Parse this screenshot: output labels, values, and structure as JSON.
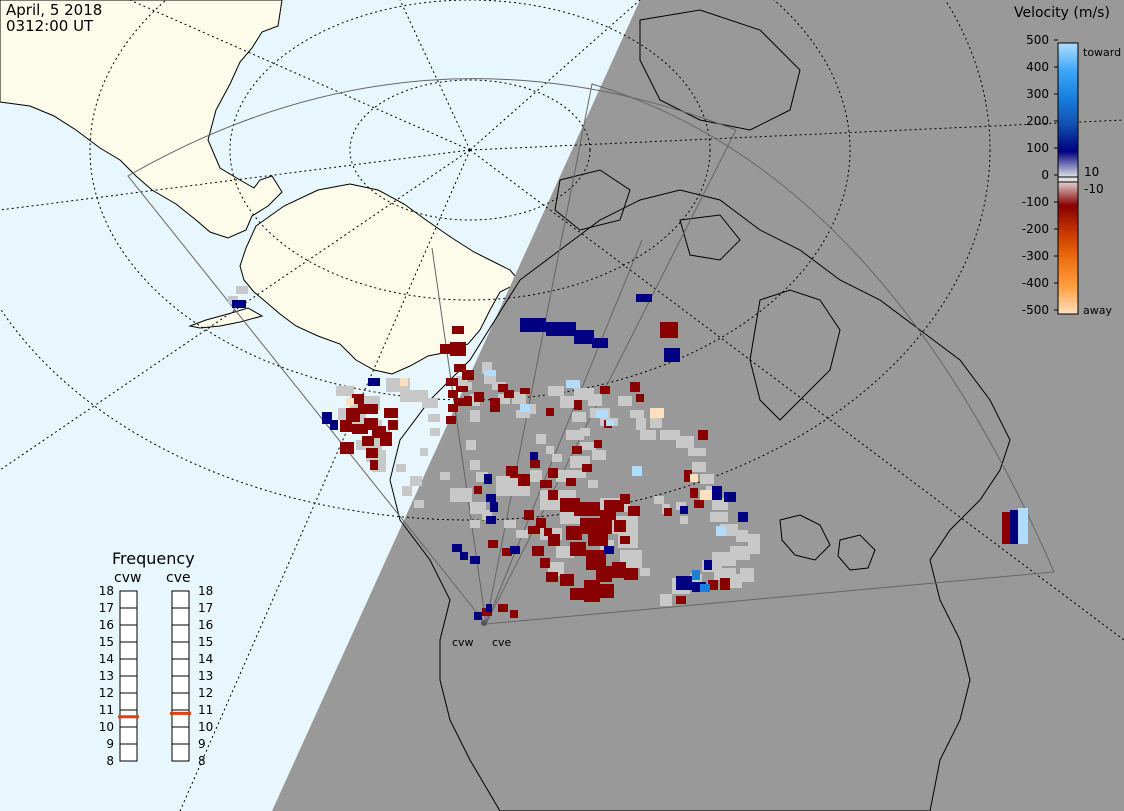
{
  "title": {
    "date": "April, 5 2018",
    "time": "0312:00 UT"
  },
  "colors": {
    "ocean": "#e8f6fe",
    "land": "#fdfcea",
    "night": "#999999",
    "ground_scatter": "#c8c8c8",
    "fov_outline": "#666666",
    "coast": "#000000"
  },
  "radars": [
    {
      "name": "cvw",
      "frequency_mhz": 10.6
    },
    {
      "name": "cve",
      "frequency_mhz": 10.8
    }
  ],
  "velocity_scale": {
    "title": "Velocity (m/s)",
    "ticks": [
      "500",
      "400",
      "300",
      "200",
      "100",
      "0",
      "-100",
      "-200",
      "-300",
      "-400",
      "-500"
    ],
    "toward_label": "toward",
    "away_label": "away",
    "inner_labels": [
      "10",
      "-10"
    ],
    "colors": [
      "#fde0c0",
      "#ffa040",
      "#f07010",
      "#c83800",
      "#880000",
      "#eeeeee",
      "#000080",
      "#1050b0",
      "#1a80e0",
      "#40a8f8",
      "#b0ddff"
    ]
  },
  "frequency_panel": {
    "title": "Frequency",
    "ticks": [
      "18",
      "17",
      "16",
      "15",
      "14",
      "13",
      "12",
      "11",
      "10",
      "9",
      "8"
    ],
    "range": [
      8,
      18
    ],
    "marker_color": "#e04010"
  },
  "cells": {
    "ground": [
      [
        236,
        286,
        12,
        8
      ],
      [
        228,
        296,
        10,
        8
      ],
      [
        336,
        386,
        18,
        10
      ],
      [
        350,
        396,
        30,
        14
      ],
      [
        386,
        378,
        24,
        14
      ],
      [
        400,
        390,
        28,
        12
      ],
      [
        338,
        408,
        28,
        12
      ],
      [
        352,
        420,
        30,
        10
      ],
      [
        372,
        430,
        18,
        10
      ],
      [
        356,
        440,
        26,
        10
      ],
      [
        366,
        450,
        20,
        12
      ],
      [
        372,
        462,
        14,
        10
      ],
      [
        422,
        398,
        16,
        10
      ],
      [
        428,
        414,
        12,
        8
      ],
      [
        430,
        428,
        10,
        8
      ],
      [
        482,
        362,
        10,
        12
      ],
      [
        484,
        374,
        12,
        10
      ],
      [
        492,
        382,
        14,
        8
      ],
      [
        498,
        394,
        12,
        10
      ],
      [
        512,
        392,
        14,
        12
      ],
      [
        516,
        410,
        14,
        8
      ],
      [
        470,
        394,
        10,
        12
      ],
      [
        470,
        410,
        10,
        12
      ],
      [
        466,
        440,
        10,
        10
      ],
      [
        470,
        460,
        10,
        10
      ],
      [
        476,
        472,
        12,
        10
      ],
      [
        450,
        488,
        22,
        14
      ],
      [
        470,
        502,
        16,
        12
      ],
      [
        496,
        476,
        34,
        20
      ],
      [
        530,
        470,
        12,
        12
      ],
      [
        548,
        386,
        16,
        10
      ],
      [
        560,
        396,
        16,
        12
      ],
      [
        574,
        388,
        20,
        12
      ],
      [
        588,
        394,
        14,
        12
      ],
      [
        590,
        408,
        20,
        10
      ],
      [
        600,
        418,
        18,
        8
      ],
      [
        572,
        412,
        14,
        10
      ],
      [
        566,
        430,
        18,
        10
      ],
      [
        580,
        442,
        16,
        8
      ],
      [
        592,
        450,
        14,
        10
      ],
      [
        570,
        456,
        20,
        12
      ],
      [
        556,
        470,
        18,
        12
      ],
      [
        540,
        490,
        36,
        20
      ],
      [
        560,
        506,
        20,
        18
      ],
      [
        600,
        498,
        30,
        14
      ],
      [
        610,
        516,
        28,
        18
      ],
      [
        618,
        534,
        20,
        14
      ],
      [
        620,
        550,
        22,
        18
      ],
      [
        600,
        540,
        14,
        10
      ],
      [
        540,
        528,
        22,
        12
      ],
      [
        556,
        546,
        18,
        12
      ],
      [
        548,
        562,
        16,
        14
      ],
      [
        640,
        568,
        10,
        8
      ],
      [
        618,
        396,
        14,
        10
      ],
      [
        630,
        410,
        14,
        8
      ],
      [
        636,
        418,
        10,
        12
      ],
      [
        650,
        418,
        12,
        10
      ],
      [
        640,
        430,
        16,
        10
      ],
      [
        660,
        430,
        20,
        10
      ],
      [
        676,
        436,
        18,
        12
      ],
      [
        688,
        448,
        18,
        8
      ],
      [
        692,
        462,
        14,
        10
      ],
      [
        700,
        474,
        14,
        10
      ],
      [
        706,
        486,
        14,
        10
      ],
      [
        712,
        498,
        16,
        12
      ],
      [
        710,
        512,
        18,
        10
      ],
      [
        720,
        524,
        18,
        12
      ],
      [
        736,
        530,
        12,
        12
      ],
      [
        748,
        534,
        12,
        20
      ],
      [
        730,
        546,
        20,
        14
      ],
      [
        712,
        552,
        24,
        14
      ],
      [
        702,
        560,
        20,
        12
      ],
      [
        714,
        568,
        22,
        12
      ],
      [
        728,
        574,
        14,
        14
      ],
      [
        740,
        568,
        14,
        14
      ],
      [
        690,
        574,
        12,
        12
      ],
      [
        672,
        578,
        18,
        16
      ],
      [
        660,
        594,
        12,
        12
      ],
      [
        524,
        404,
        12,
        10
      ],
      [
        536,
        434,
        10,
        10
      ],
      [
        546,
        446,
        8,
        8
      ],
      [
        552,
        454,
        10,
        8
      ],
      [
        574,
        470,
        12,
        8
      ],
      [
        588,
        480,
        10,
        8
      ],
      [
        580,
        428,
        10,
        8
      ],
      [
        440,
        472,
        10,
        8
      ],
      [
        470,
        520,
        10,
        8
      ],
      [
        482,
        510,
        10,
        10
      ],
      [
        504,
        520,
        12,
        8
      ],
      [
        516,
        530,
        12,
        8
      ],
      [
        410,
        476,
        12,
        10
      ],
      [
        402,
        486,
        10,
        10
      ],
      [
        414,
        500,
        10,
        8
      ],
      [
        654,
        496,
        10,
        8
      ],
      [
        662,
        504,
        8,
        10
      ],
      [
        676,
        502,
        10,
        8
      ],
      [
        680,
        516,
        8,
        8
      ],
      [
        456,
        376,
        10,
        10
      ],
      [
        462,
        382,
        10,
        8
      ],
      [
        344,
        388,
        10,
        8
      ],
      [
        396,
        464,
        10,
        8
      ],
      [
        420,
        448,
        8,
        8
      ]
    ],
    "neg": [
      [
        452,
        326,
        12,
        8
      ],
      [
        440,
        344,
        10,
        10
      ],
      [
        450,
        342,
        16,
        14
      ],
      [
        454,
        364,
        12,
        8
      ],
      [
        462,
        370,
        12,
        10
      ],
      [
        446,
        378,
        12,
        8
      ],
      [
        448,
        390,
        10,
        8
      ],
      [
        448,
        404,
        10,
        8
      ],
      [
        446,
        416,
        10,
        8
      ],
      [
        454,
        398,
        10,
        8
      ],
      [
        352,
        394,
        12,
        10
      ],
      [
        358,
        404,
        20,
        10
      ],
      [
        346,
        408,
        14,
        14
      ],
      [
        340,
        420,
        12,
        12
      ],
      [
        352,
        424,
        16,
        10
      ],
      [
        364,
        418,
        14,
        12
      ],
      [
        372,
        426,
        14,
        12
      ],
      [
        380,
        432,
        12,
        14
      ],
      [
        362,
        436,
        12,
        10
      ],
      [
        366,
        448,
        12,
        10
      ],
      [
        370,
        460,
        8,
        10
      ],
      [
        384,
        408,
        14,
        10
      ],
      [
        388,
        420,
        10,
        10
      ],
      [
        340,
        442,
        14,
        12
      ],
      [
        474,
        392,
        10,
        10
      ],
      [
        490,
        398,
        10,
        14
      ],
      [
        498,
        384,
        10,
        8
      ],
      [
        504,
        390,
        10,
        8
      ],
      [
        456,
        386,
        12,
        6
      ],
      [
        464,
        396,
        8,
        10
      ],
      [
        506,
        466,
        12,
        10
      ],
      [
        518,
        474,
        12,
        12
      ],
      [
        530,
        460,
        10,
        8
      ],
      [
        548,
        468,
        10,
        10
      ],
      [
        540,
        480,
        12,
        8
      ],
      [
        548,
        490,
        10,
        10
      ],
      [
        560,
        498,
        20,
        14
      ],
      [
        574,
        502,
        26,
        14
      ],
      [
        580,
        518,
        32,
        16
      ],
      [
        566,
        526,
        16,
        14
      ],
      [
        588,
        532,
        20,
        14
      ],
      [
        600,
        510,
        16,
        10
      ],
      [
        570,
        542,
        16,
        14
      ],
      [
        586,
        550,
        20,
        20
      ],
      [
        596,
        566,
        16,
        16
      ],
      [
        612,
        562,
        14,
        16
      ],
      [
        624,
        568,
        14,
        12
      ],
      [
        600,
        584,
        14,
        14
      ],
      [
        584,
        580,
        16,
        22
      ],
      [
        570,
        588,
        16,
        12
      ],
      [
        560,
        574,
        14,
        12
      ],
      [
        548,
        534,
        12,
        12
      ],
      [
        532,
        546,
        12,
        10
      ],
      [
        540,
        558,
        10,
        10
      ],
      [
        546,
        572,
        12,
        10
      ],
      [
        604,
        500,
        20,
        12
      ],
      [
        614,
        520,
        12,
        12
      ],
      [
        628,
        506,
        12,
        10
      ],
      [
        620,
        494,
        10,
        10
      ],
      [
        524,
        510,
        10,
        10
      ],
      [
        528,
        526,
        12,
        8
      ],
      [
        536,
        518,
        10,
        10
      ],
      [
        544,
        528,
        8,
        8
      ],
      [
        572,
        446,
        10,
        8
      ],
      [
        582,
        464,
        10,
        8
      ],
      [
        594,
        440,
        8,
        8
      ],
      [
        604,
        420,
        8,
        8
      ],
      [
        630,
        382,
        10,
        10
      ],
      [
        636,
        394,
        8,
        8
      ],
      [
        574,
        400,
        8,
        10
      ],
      [
        546,
        408,
        8,
        8
      ],
      [
        600,
        386,
        10,
        8
      ],
      [
        660,
        322,
        18,
        16
      ],
      [
        664,
        350,
        8,
        10
      ],
      [
        698,
        430,
        10,
        10
      ],
      [
        684,
        470,
        8,
        12
      ],
      [
        690,
        488,
        8,
        10
      ],
      [
        694,
        500,
        10,
        8
      ],
      [
        720,
        578,
        10,
        12
      ],
      [
        708,
        580,
        10,
        10
      ],
      [
        676,
        596,
        10,
        8
      ],
      [
        664,
        508,
        8,
        8
      ],
      [
        488,
        540,
        10,
        8
      ],
      [
        502,
        548,
        10,
        8
      ],
      [
        510,
        470,
        8,
        8
      ],
      [
        482,
        608,
        10,
        8
      ],
      [
        498,
        604,
        10,
        8
      ],
      [
        510,
        610,
        8,
        8
      ],
      [
        1002,
        512,
        8,
        32
      ],
      [
        520,
        388,
        10,
        6
      ],
      [
        474,
        486,
        8,
        8
      ],
      [
        566,
        478,
        10,
        8
      ],
      [
        620,
        536,
        10,
        8
      ]
    ],
    "pos": [
      [
        232,
        300,
        14,
        8
      ],
      [
        322,
        412,
        10,
        12
      ],
      [
        330,
        420,
        8,
        10
      ],
      [
        368,
        378,
        12,
        8
      ],
      [
        484,
        474,
        8,
        10
      ],
      [
        486,
        494,
        10,
        8
      ],
      [
        490,
        502,
        8,
        10
      ],
      [
        486,
        516,
        10,
        8
      ],
      [
        452,
        544,
        10,
        8
      ],
      [
        460,
        552,
        8,
        8
      ],
      [
        470,
        556,
        10,
        8
      ],
      [
        520,
        318,
        26,
        14
      ],
      [
        546,
        322,
        30,
        14
      ],
      [
        574,
        330,
        20,
        14
      ],
      [
        592,
        338,
        16,
        10
      ],
      [
        636,
        294,
        16,
        8
      ],
      [
        664,
        348,
        16,
        14
      ],
      [
        676,
        576,
        16,
        14
      ],
      [
        692,
        582,
        14,
        10
      ],
      [
        712,
        486,
        10,
        14
      ],
      [
        724,
        492,
        12,
        10
      ],
      [
        738,
        512,
        10,
        10
      ],
      [
        704,
        560,
        8,
        10
      ],
      [
        1010,
        510,
        8,
        34
      ],
      [
        604,
        546,
        10,
        8
      ],
      [
        510,
        546,
        10,
        8
      ],
      [
        474,
        612,
        8,
        8
      ],
      [
        486,
        604,
        6,
        8
      ],
      [
        530,
        452,
        8,
        8
      ],
      [
        680,
        506,
        8,
        8
      ]
    ],
    "pos_light": [
      [
        566,
        380,
        14,
        8
      ],
      [
        596,
        410,
        12,
        8
      ],
      [
        606,
        420,
        8,
        6
      ],
      [
        484,
        370,
        12,
        6
      ],
      [
        520,
        404,
        10,
        8
      ],
      [
        632,
        466,
        10,
        10
      ],
      [
        716,
        526,
        10,
        10
      ],
      [
        1018,
        508,
        10,
        36
      ]
    ],
    "pos_mid": [
      [
        692,
        570,
        8,
        10
      ],
      [
        700,
        584,
        10,
        8
      ]
    ],
    "neg_light": [
      [
        346,
        398,
        8,
        8
      ],
      [
        650,
        408,
        14,
        10
      ],
      [
        700,
        490,
        12,
        10
      ],
      [
        690,
        474,
        8,
        8
      ],
      [
        400,
        378,
        8,
        8
      ]
    ]
  }
}
